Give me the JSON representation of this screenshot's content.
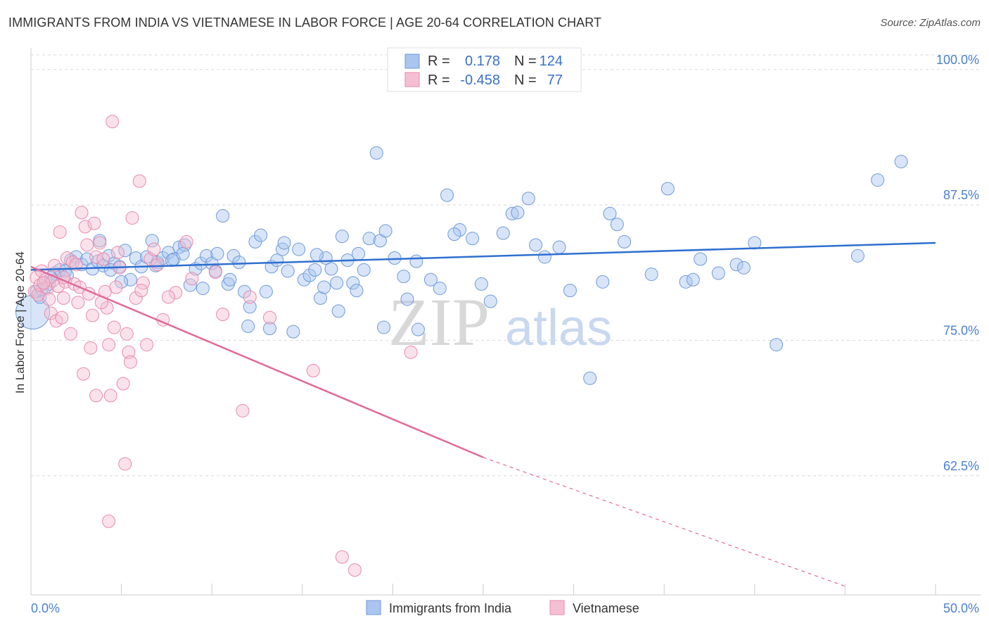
{
  "title": "IMMIGRANTS FROM INDIA VS VIETNAMESE IN LABOR FORCE | AGE 20-64 CORRELATION CHART",
  "source": "Source: ZipAtlas.com",
  "watermark": {
    "part1": "ZIP",
    "part2": "atlas"
  },
  "legend": {
    "r_label": "R =",
    "n_label": "N =",
    "rows": [
      {
        "r": "0.178",
        "n": "124",
        "color": "#a9c5f0"
      },
      {
        "r": "-0.458",
        "n": "77",
        "color": "#f5bfd3"
      }
    ]
  },
  "bottom_legend": [
    "Immigrants from India",
    "Vietnamese"
  ],
  "colors": {
    "blue_fill": "#a9c5f0",
    "blue_stroke": "#6f9ad8",
    "blue_line": "#2f6fd0",
    "pink_fill": "#f5bfd3",
    "pink_stroke": "#e88aac",
    "pink_line": "#e06a98",
    "tick_text": "#4a7fd1",
    "grid": "#d9d9d9"
  },
  "chart_data": {
    "type": "scatter",
    "title": "IMMIGRANTS FROM INDIA VS VIETNAMESE IN LABOR FORCE | AGE 20-64 CORRELATION CHART",
    "xlabel": "",
    "ylabel": "In Labor Force | Age 20-64",
    "xlim": [
      0,
      50
    ],
    "ylim": [
      51.5,
      102
    ],
    "x_tick_labels": [
      "0.0%",
      "50.0%"
    ],
    "y_ticks": [
      62.5,
      75.0,
      87.5,
      100.0
    ],
    "y_tick_labels": [
      "62.5%",
      "75.0%",
      "87.5%",
      "100.0%"
    ],
    "grid": "horizontal dashed",
    "legend_position": "top-center",
    "series": [
      {
        "name": "Immigrants from India",
        "r": 0.178,
        "n": 124,
        "trend": {
          "x0": 0,
          "y0": 81.5,
          "x1": 50,
          "y1": 84.0
        },
        "points": [
          [
            0.1,
            77.6
          ],
          [
            0.3,
            79.5
          ],
          [
            0.5,
            79.0
          ],
          [
            0.8,
            79.9
          ],
          [
            1.0,
            80.2
          ],
          [
            1.3,
            81.2
          ],
          [
            1.6,
            81.5
          ],
          [
            1.9,
            81.4
          ],
          [
            2.2,
            82.4
          ],
          [
            2.5,
            82.7
          ],
          [
            2.8,
            82.0
          ],
          [
            3.1,
            82.5
          ],
          [
            3.4,
            81.6
          ],
          [
            3.7,
            82.3
          ],
          [
            4.0,
            81.9
          ],
          [
            4.3,
            82.8
          ],
          [
            4.6,
            82.1
          ],
          [
            4.9,
            81.8
          ],
          [
            5.2,
            83.3
          ],
          [
            5.5,
            80.6
          ],
          [
            5.8,
            82.6
          ],
          [
            6.1,
            81.8
          ],
          [
            6.4,
            82.7
          ],
          [
            6.7,
            84.2
          ],
          [
            7.0,
            82.2
          ],
          [
            7.3,
            82.6
          ],
          [
            7.6,
            83.1
          ],
          [
            7.9,
            82.5
          ],
          [
            8.2,
            83.6
          ],
          [
            8.5,
            83.8
          ],
          [
            8.8,
            80.1
          ],
          [
            9.1,
            81.6
          ],
          [
            9.4,
            82.1
          ],
          [
            9.7,
            82.8
          ],
          [
            10.0,
            82.1
          ],
          [
            10.3,
            83.0
          ],
          [
            10.6,
            86.5
          ],
          [
            10.9,
            80.2
          ],
          [
            11.2,
            82.8
          ],
          [
            11.5,
            82.2
          ],
          [
            11.8,
            79.5
          ],
          [
            12.1,
            78.1
          ],
          [
            12.4,
            84.1
          ],
          [
            12.7,
            84.7
          ],
          [
            13.0,
            79.5
          ],
          [
            13.3,
            81.8
          ],
          [
            13.6,
            82.4
          ],
          [
            13.9,
            83.4
          ],
          [
            14.2,
            81.4
          ],
          [
            14.5,
            75.8
          ],
          [
            14.8,
            83.4
          ],
          [
            15.1,
            80.6
          ],
          [
            15.4,
            81.0
          ],
          [
            15.7,
            81.5
          ],
          [
            16.0,
            78.9
          ],
          [
            16.3,
            82.6
          ],
          [
            16.6,
            81.6
          ],
          [
            16.9,
            80.3
          ],
          [
            17.2,
            84.6
          ],
          [
            17.5,
            82.4
          ],
          [
            17.8,
            80.3
          ],
          [
            18.1,
            83.0
          ],
          [
            18.4,
            81.5
          ],
          [
            18.7,
            84.4
          ],
          [
            19.1,
            92.3
          ],
          [
            19.3,
            84.2
          ],
          [
            19.6,
            85.1
          ],
          [
            20.1,
            82.6
          ],
          [
            20.6,
            80.9
          ],
          [
            21.3,
            82.3
          ],
          [
            22.1,
            80.6
          ],
          [
            23.0,
            88.4
          ],
          [
            23.7,
            85.2
          ],
          [
            24.9,
            80.2
          ],
          [
            25.4,
            78.6
          ],
          [
            26.1,
            84.9
          ],
          [
            26.6,
            86.7
          ],
          [
            26.9,
            86.8
          ],
          [
            27.5,
            88.1
          ],
          [
            27.9,
            83.8
          ],
          [
            29.2,
            83.6
          ],
          [
            29.8,
            79.6
          ],
          [
            30.9,
            71.5
          ],
          [
            31.6,
            80.4
          ],
          [
            32.0,
            86.7
          ],
          [
            32.4,
            85.7
          ],
          [
            32.8,
            84.1
          ],
          [
            34.3,
            81.1
          ],
          [
            35.2,
            89.0
          ],
          [
            36.2,
            80.4
          ],
          [
            36.6,
            80.6
          ],
          [
            37.0,
            82.5
          ],
          [
            38.0,
            81.2
          ],
          [
            39.0,
            82.0
          ],
          [
            39.4,
            81.7
          ],
          [
            40.0,
            84.0
          ],
          [
            41.2,
            74.6
          ],
          [
            45.7,
            82.8
          ],
          [
            46.8,
            89.8
          ],
          [
            48.1,
            91.5
          ],
          [
            13.2,
            76.1
          ],
          [
            5.0,
            80.4
          ],
          [
            17.0,
            77.7
          ],
          [
            20.8,
            78.8
          ],
          [
            19.5,
            76.2
          ],
          [
            21.4,
            76.0
          ],
          [
            9.5,
            79.8
          ],
          [
            12.0,
            76.3
          ],
          [
            8.4,
            83.0
          ],
          [
            6.9,
            81.9
          ],
          [
            3.8,
            84.2
          ],
          [
            2.0,
            81.0
          ],
          [
            1.1,
            80.8
          ],
          [
            0.6,
            79.7
          ],
          [
            4.4,
            81.5
          ],
          [
            15.8,
            82.9
          ],
          [
            18.0,
            79.6
          ],
          [
            23.4,
            84.8
          ],
          [
            24.4,
            84.4
          ],
          [
            7.8,
            82.4
          ],
          [
            11.0,
            80.6
          ],
          [
            14.0,
            84.0
          ],
          [
            16.2,
            79.9
          ],
          [
            22.6,
            79.8
          ],
          [
            28.4,
            82.7
          ],
          [
            10.2,
            81.4
          ]
        ]
      },
      {
        "name": "Vietnamese",
        "r": -0.458,
        "n": 77,
        "trend": {
          "x0": 0,
          "y0": 81.8,
          "x1": 25,
          "y1": 64.2,
          "dash_to_x": 45,
          "dash_to_y": 52.3
        },
        "points": [
          [
            0.2,
            79.5
          ],
          [
            0.3,
            80.8
          ],
          [
            0.4,
            79.2
          ],
          [
            0.5,
            80.1
          ],
          [
            0.6,
            81.4
          ],
          [
            0.8,
            80.6
          ],
          [
            0.9,
            79.8
          ],
          [
            1.0,
            78.8
          ],
          [
            1.1,
            77.5
          ],
          [
            1.2,
            80.5
          ],
          [
            1.3,
            81.9
          ],
          [
            1.4,
            76.8
          ],
          [
            1.5,
            80.0
          ],
          [
            1.6,
            85.0
          ],
          [
            1.7,
            77.1
          ],
          [
            1.8,
            78.9
          ],
          [
            1.9,
            80.4
          ],
          [
            2.0,
            82.6
          ],
          [
            2.2,
            75.6
          ],
          [
            2.3,
            82.2
          ],
          [
            2.4,
            80.2
          ],
          [
            2.6,
            78.5
          ],
          [
            2.7,
            79.9
          ],
          [
            2.8,
            86.8
          ],
          [
            2.9,
            71.9
          ],
          [
            3.0,
            85.5
          ],
          [
            3.1,
            83.8
          ],
          [
            3.2,
            79.3
          ],
          [
            3.3,
            74.3
          ],
          [
            3.4,
            77.3
          ],
          [
            3.5,
            85.8
          ],
          [
            3.6,
            82.7
          ],
          [
            3.8,
            84.0
          ],
          [
            4.0,
            82.5
          ],
          [
            4.1,
            79.5
          ],
          [
            4.2,
            78.0
          ],
          [
            4.3,
            74.6
          ],
          [
            4.4,
            69.9
          ],
          [
            4.5,
            95.2
          ],
          [
            4.6,
            76.2
          ],
          [
            4.7,
            79.9
          ],
          [
            4.8,
            83.1
          ],
          [
            4.9,
            81.7
          ],
          [
            5.1,
            71.0
          ],
          [
            5.3,
            75.6
          ],
          [
            5.4,
            73.9
          ],
          [
            5.5,
            73.0
          ],
          [
            5.6,
            86.3
          ],
          [
            5.8,
            78.9
          ],
          [
            6.0,
            89.7
          ],
          [
            6.2,
            80.3
          ],
          [
            6.4,
            74.6
          ],
          [
            6.6,
            82.5
          ],
          [
            6.8,
            83.4
          ],
          [
            7.0,
            82.0
          ],
          [
            7.3,
            76.9
          ],
          [
            8.0,
            79.4
          ],
          [
            8.6,
            84.1
          ],
          [
            8.9,
            80.7
          ],
          [
            10.2,
            81.3
          ],
          [
            11.7,
            68.5
          ],
          [
            12.1,
            79.0
          ],
          [
            13.2,
            77.1
          ],
          [
            15.6,
            72.2
          ],
          [
            17.2,
            55.0
          ],
          [
            17.9,
            53.8
          ],
          [
            21.0,
            73.9
          ],
          [
            5.2,
            63.6
          ],
          [
            4.3,
            58.3
          ],
          [
            3.6,
            69.9
          ],
          [
            7.6,
            79.0
          ],
          [
            6.1,
            79.6
          ],
          [
            2.5,
            82.0
          ],
          [
            1.8,
            80.8
          ],
          [
            0.7,
            80.3
          ],
          [
            3.9,
            78.5
          ],
          [
            10.6,
            77.4
          ]
        ]
      }
    ]
  }
}
